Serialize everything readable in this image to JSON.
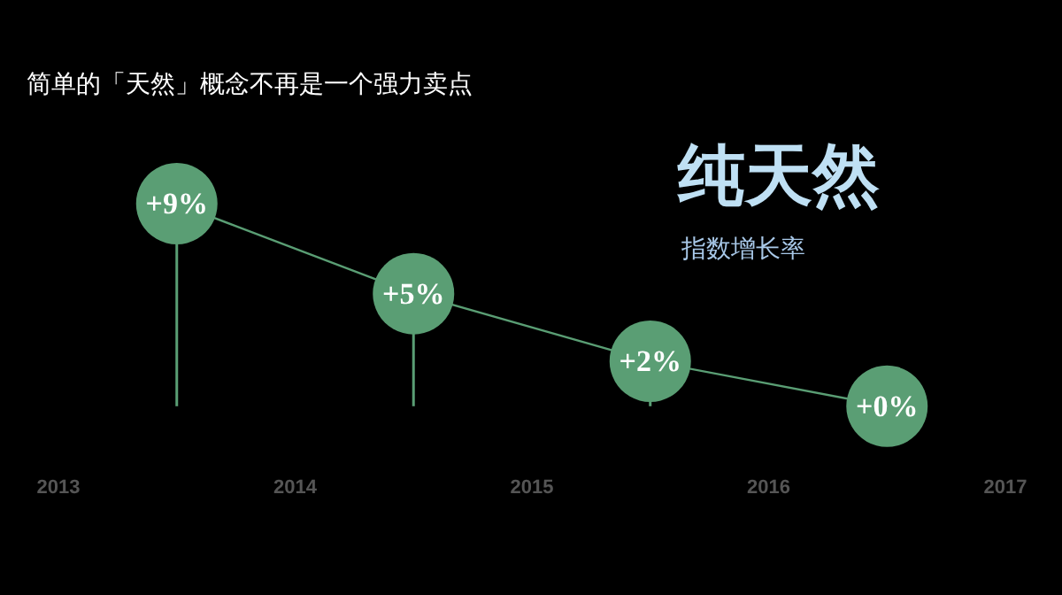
{
  "chart_data": {
    "type": "lollipop",
    "title": "简单的「天然」概念不再是一个强力卖点",
    "annotations": [
      "纯天然",
      "指数增长率"
    ],
    "x": [
      2013.5,
      2014.5,
      2015.5,
      2016.5
    ],
    "series": [
      {
        "color": "#5a9e74",
        "values": [
          9,
          5,
          2,
          0
        ],
        "value_labels": [
          "+9%",
          "+5%",
          "+2%",
          "+0%"
        ]
      }
    ],
    "xlim": [
      2013,
      2017
    ],
    "xticks": [
      2013,
      2014,
      2015,
      2016,
      2017
    ],
    "tick_labels": "x",
    "grid": false,
    "marker": "circle",
    "line_style": "solid"
  }
}
